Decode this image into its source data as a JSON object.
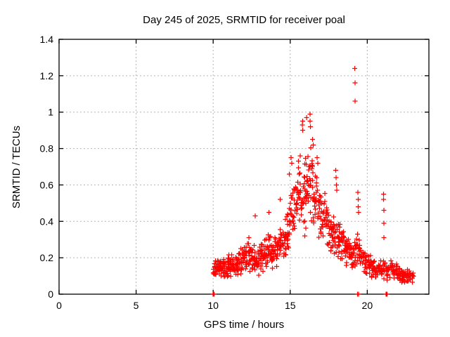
{
  "window": {
    "background": "#ffffff"
  },
  "colors": {
    "marker": "#ff0000",
    "grid": "#b4b4b4",
    "axis": "#000000",
    "text": "#000000"
  },
  "chart_data": {
    "type": "scatter",
    "title": "Day 245 of 2025, SRMTID for receiver poal",
    "xlabel": "GPS time / hours",
    "ylabel": "SRMTID / TECUs",
    "xlim": [
      0,
      24
    ],
    "ylim": [
      0,
      1.4
    ],
    "xticks": [
      0,
      5,
      10,
      15,
      20
    ],
    "xtick_labels": [
      "0",
      "5",
      "10",
      "15",
      "20"
    ],
    "yticks": [
      0,
      0.2,
      0.4,
      0.6,
      0.8,
      1.0,
      1.2,
      1.4
    ],
    "ytick_labels": [
      "0",
      "0.2",
      "0.4",
      "0.6",
      "0.8",
      "1",
      "1.2",
      "1.4"
    ],
    "grid": true,
    "legend": "none",
    "marker": "plus",
    "marker_color": "#ff0000",
    "data_extent_hours": [
      10.0,
      23.0
    ],
    "bin_format": [
      "t_start",
      "t_end",
      "y_center",
      "y_halfspread",
      "count"
    ],
    "density_bins": [
      [
        10.0,
        10.25,
        0.14,
        0.06,
        18
      ],
      [
        10.25,
        10.5,
        0.15,
        0.06,
        18
      ],
      [
        10.5,
        10.75,
        0.14,
        0.06,
        18
      ],
      [
        10.75,
        11.0,
        0.15,
        0.07,
        18
      ],
      [
        11.0,
        11.25,
        0.16,
        0.07,
        18
      ],
      [
        11.25,
        11.5,
        0.15,
        0.07,
        18
      ],
      [
        11.5,
        11.75,
        0.17,
        0.08,
        18
      ],
      [
        11.75,
        12.0,
        0.18,
        0.08,
        18
      ],
      [
        12.0,
        12.25,
        0.2,
        0.09,
        18
      ],
      [
        12.25,
        12.5,
        0.22,
        0.1,
        18
      ],
      [
        12.5,
        12.75,
        0.2,
        0.1,
        18
      ],
      [
        12.75,
        13.0,
        0.18,
        0.08,
        18
      ],
      [
        13.0,
        13.25,
        0.2,
        0.09,
        18
      ],
      [
        13.25,
        13.5,
        0.22,
        0.1,
        18
      ],
      [
        13.5,
        13.75,
        0.25,
        0.12,
        18
      ],
      [
        13.75,
        14.0,
        0.22,
        0.1,
        18
      ],
      [
        14.0,
        14.25,
        0.23,
        0.1,
        18
      ],
      [
        14.25,
        14.5,
        0.28,
        0.12,
        18
      ],
      [
        14.5,
        14.75,
        0.3,
        0.13,
        18
      ],
      [
        14.75,
        15.0,
        0.35,
        0.15,
        18
      ],
      [
        15.0,
        15.25,
        0.45,
        0.18,
        18
      ],
      [
        15.25,
        15.5,
        0.5,
        0.18,
        18
      ],
      [
        15.5,
        15.75,
        0.6,
        0.2,
        18
      ],
      [
        15.75,
        16.0,
        0.55,
        0.25,
        18
      ],
      [
        16.0,
        16.25,
        0.55,
        0.25,
        20
      ],
      [
        16.25,
        16.5,
        0.6,
        0.22,
        20
      ],
      [
        16.5,
        16.75,
        0.5,
        0.2,
        18
      ],
      [
        16.75,
        17.0,
        0.45,
        0.18,
        18
      ],
      [
        17.0,
        17.25,
        0.42,
        0.16,
        18
      ],
      [
        17.25,
        17.5,
        0.38,
        0.14,
        18
      ],
      [
        17.5,
        17.75,
        0.35,
        0.13,
        18
      ],
      [
        17.75,
        18.0,
        0.33,
        0.13,
        18
      ],
      [
        18.0,
        18.25,
        0.3,
        0.12,
        18
      ],
      [
        18.25,
        18.5,
        0.28,
        0.11,
        18
      ],
      [
        18.5,
        18.75,
        0.25,
        0.1,
        18
      ],
      [
        18.75,
        19.0,
        0.22,
        0.09,
        16
      ],
      [
        19.0,
        19.25,
        0.22,
        0.09,
        16
      ],
      [
        19.25,
        19.5,
        0.25,
        0.12,
        16
      ],
      [
        19.5,
        19.75,
        0.2,
        0.08,
        16
      ],
      [
        19.75,
        20.0,
        0.18,
        0.08,
        16
      ],
      [
        20.0,
        20.25,
        0.16,
        0.07,
        16
      ],
      [
        20.25,
        20.5,
        0.15,
        0.07,
        14
      ],
      [
        20.5,
        20.75,
        0.13,
        0.06,
        14
      ],
      [
        20.75,
        21.0,
        0.13,
        0.06,
        12
      ],
      [
        21.0,
        21.25,
        0.14,
        0.06,
        12
      ],
      [
        21.25,
        21.5,
        0.13,
        0.06,
        12
      ],
      [
        21.5,
        21.75,
        0.14,
        0.06,
        14
      ],
      [
        21.75,
        22.0,
        0.13,
        0.05,
        14
      ],
      [
        22.0,
        22.25,
        0.11,
        0.05,
        16
      ],
      [
        22.25,
        22.5,
        0.1,
        0.04,
        16
      ],
      [
        22.5,
        22.75,
        0.1,
        0.04,
        16
      ],
      [
        22.75,
        23.0,
        0.09,
        0.03,
        10
      ]
    ],
    "outliers": [
      [
        19.18,
        1.24
      ],
      [
        19.2,
        1.16
      ],
      [
        19.21,
        1.06
      ]
    ],
    "zeros": [
      [
        10.0,
        0
      ],
      [
        10.03,
        0
      ],
      [
        10.06,
        0
      ],
      [
        19.38,
        0
      ],
      [
        19.44,
        0
      ],
      [
        21.22,
        0
      ],
      [
        21.25,
        0
      ],
      [
        21.28,
        0
      ]
    ],
    "extra_points": [
      [
        12.72,
        0.43
      ],
      [
        13.62,
        0.45
      ],
      [
        14.35,
        0.52
      ],
      [
        14.95,
        0.66
      ],
      [
        15.05,
        0.75
      ],
      [
        15.1,
        0.72
      ],
      [
        15.78,
        0.93
      ],
      [
        15.8,
        0.95
      ],
      [
        15.82,
        0.9
      ],
      [
        16.05,
        0.97
      ],
      [
        16.28,
        0.99
      ],
      [
        16.3,
        0.95
      ],
      [
        16.32,
        0.92
      ],
      [
        16.45,
        0.85
      ],
      [
        16.5,
        0.82
      ],
      [
        16.75,
        0.75
      ],
      [
        16.78,
        0.72
      ],
      [
        17.95,
        0.68
      ],
      [
        17.98,
        0.64
      ],
      [
        18.0,
        0.6
      ],
      [
        18.03,
        0.57
      ],
      [
        19.4,
        0.56
      ],
      [
        19.41,
        0.52
      ],
      [
        19.42,
        0.48
      ],
      [
        19.43,
        0.45
      ],
      [
        21.05,
        0.55
      ],
      [
        21.06,
        0.52
      ],
      [
        21.07,
        0.46
      ],
      [
        21.08,
        0.39
      ],
      [
        21.09,
        0.31
      ]
    ]
  }
}
